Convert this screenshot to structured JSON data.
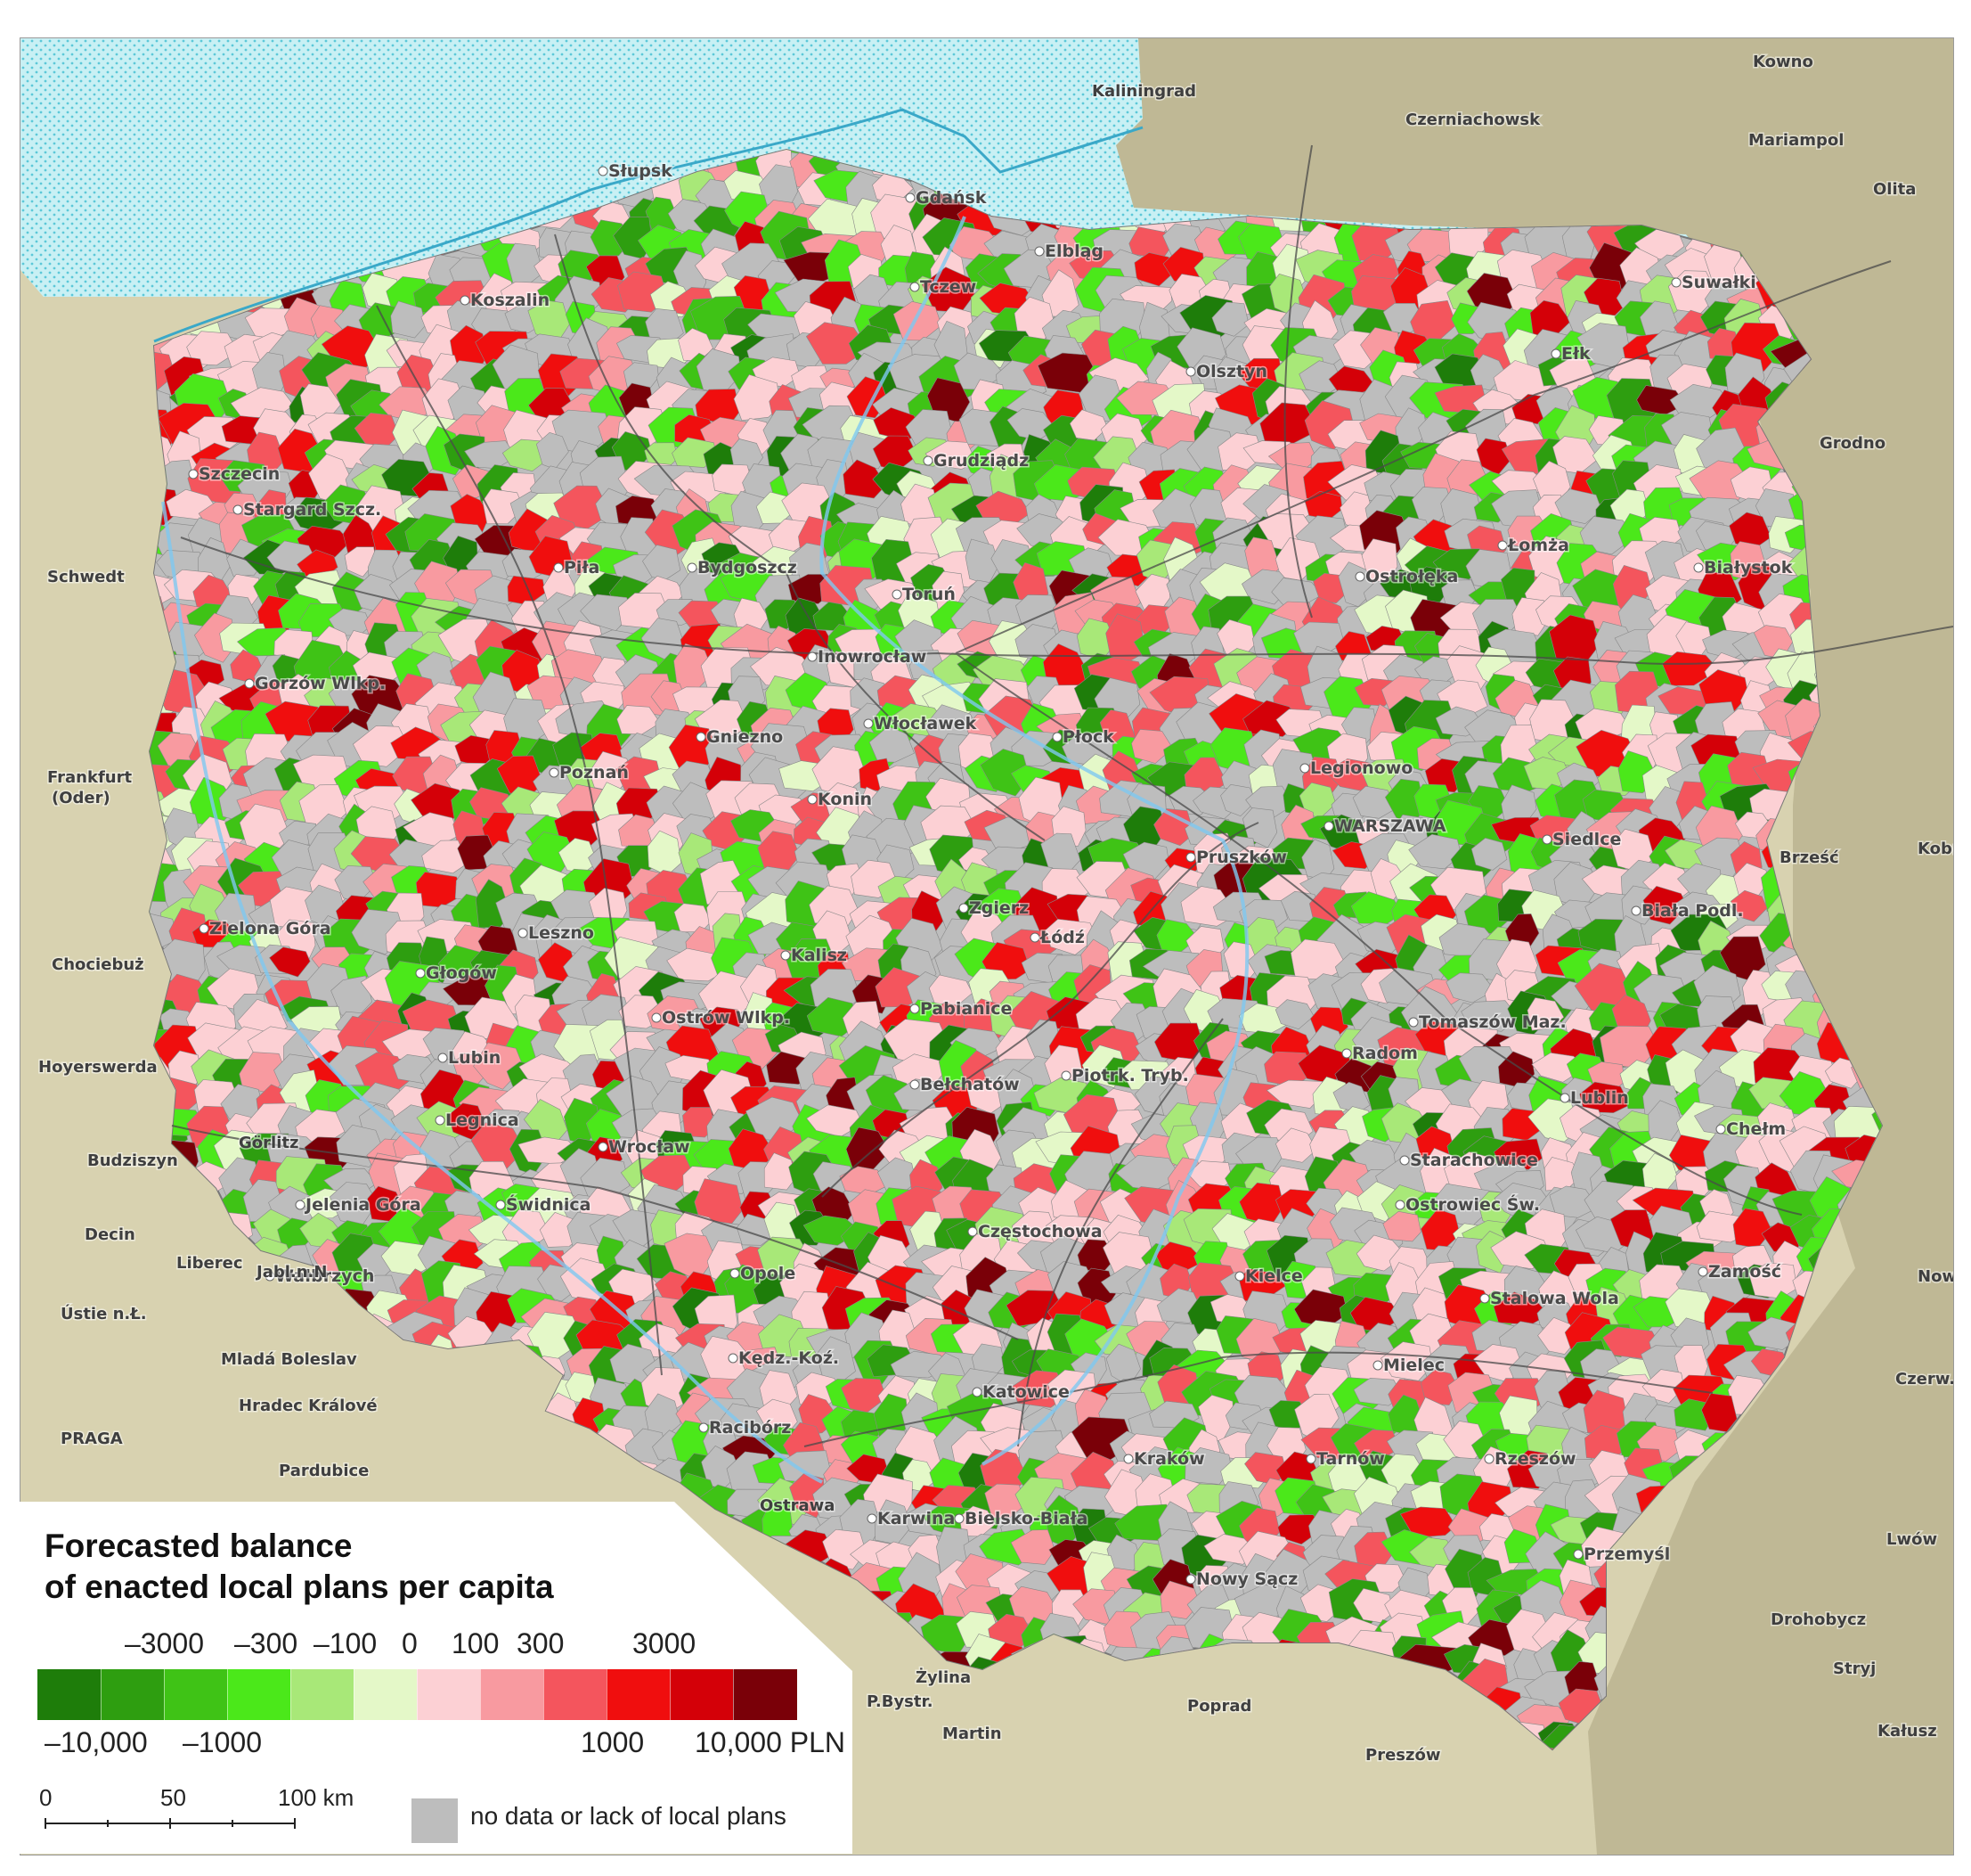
{
  "map": {
    "cities_pl": [
      "Słupsk",
      "Gdańsk",
      "Elbląg",
      "Tczew",
      "Koszalin",
      "Olsztyn",
      "Suwałki",
      "Ełk",
      "Szczecin",
      "Stargard Szcz.",
      "Grudziądz",
      "Piła",
      "Bydgoszcz",
      "Toruń",
      "Łomża",
      "Białystok",
      "Ostrołęka",
      "Inowrocław",
      "Gorzów Wlkp.",
      "Włocławek",
      "Płock",
      "Gniezno",
      "Legionowo",
      "Poznań",
      "Konin",
      "WARSZAWA",
      "Siedlce",
      "Pruszków",
      "Biała Podl.",
      "Zgierz",
      "Łódź",
      "Zielona Góra",
      "Leszno",
      "Kalisz",
      "Głogów",
      "Pabianice",
      "Ostrów Wlkp.",
      "Tomaszów Maz.",
      "Lubin",
      "Radom",
      "Piotrk. Tryb.",
      "Bełchatów",
      "Lublin",
      "Chełm",
      "Legnica",
      "Wrocław",
      "Starachowice",
      "Jelenia Góra",
      "Świdnica",
      "Ostrowiec Św.",
      "Częstochowa",
      "Wałbrzych",
      "Kielce",
      "Zamość",
      "Opole",
      "Stalowa Wola",
      "Kędz.-Koź.",
      "Mielec",
      "Katowice",
      "Racibórz",
      "Kraków",
      "Tarnów",
      "Rzeszów",
      "Karwina",
      "Bielsko-Biała",
      "Przemyśl",
      "Nowy Sącz"
    ],
    "cities_foreign": [
      "Kaliningrad",
      "Kowno",
      "Czerniachowsk",
      "Mariampol",
      "Olita",
      "Grodno",
      "Schwedt",
      "Frankfurt",
      "(Oder)",
      "Brześć",
      "Kobryń",
      "Chociebuż",
      "Hoyerswerda",
      "Görlitz",
      "Budziszyn",
      "Decin",
      "Liberec",
      "Jabl.n.N",
      "Ústie n.Ł.",
      "Mladá Boleslav",
      "Hradec Králové",
      "PRAGA",
      "Pardubice",
      "Ostrawa",
      "Nowo",
      "Czerw.",
      "Lwów",
      "Drohobycz",
      "Stryj",
      "Kałusz",
      "Żylina",
      "P.Bystr.",
      "Martin",
      "Poprad",
      "Preszów"
    ]
  },
  "legend": {
    "title_line1": "Forecasted balance",
    "title_line2": "of enacted local plans per capita",
    "colors": [
      "#1e7d0a",
      "#2e9e10",
      "#3fc316",
      "#4be81a",
      "#a8e878",
      "#e4f8c8",
      "#fcd0d4",
      "#f89aa0",
      "#f4555d",
      "#f00e0e",
      "#d40008",
      "#7a0008"
    ],
    "ticks_top": [
      "–3000",
      "–300",
      "–100",
      "0",
      "100",
      "300",
      "3000"
    ],
    "ticks_bottom": [
      "–10,000",
      "–1000",
      "1000",
      "10,000 PLN"
    ],
    "scale_labels": [
      "0",
      "50",
      "100 km"
    ],
    "nodata_label": "no data or lack of local plans"
  }
}
